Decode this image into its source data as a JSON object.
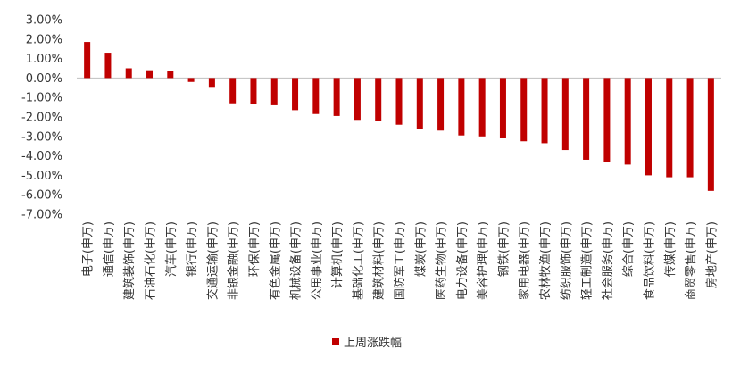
{
  "chart_data": {
    "type": "bar",
    "categories": [
      "电子(申万)",
      "通信(申万)",
      "建筑装饰(申万)",
      "石油石化(申万)",
      "汽车(申万)",
      "银行(申万)",
      "交通运输(申万)",
      "非银金融(申万)",
      "环保(申万)",
      "有色金属(申万)",
      "机械设备(申万)",
      "公用事业(申万)",
      "计算机(申万)",
      "基础化工(申万)",
      "建筑材料(申万)",
      "国防军工(申万)",
      "煤炭(申万)",
      "医药生物(申万)",
      "电力设备(申万)",
      "美容护理(申万)",
      "钢铁(申万)",
      "家用电器(申万)",
      "农林牧渔(申万)",
      "纺织服饰(申万)",
      "轻工制造(申万)",
      "社会服务(申万)",
      "综合(申万)",
      "食品饮料(申万)",
      "传媒(申万)",
      "商贸零售(申万)",
      "房地产(申万)"
    ],
    "series": [
      {
        "name": "上周涨跌幅",
        "color": "#c00000",
        "values": [
          1.85,
          1.3,
          0.5,
          0.4,
          0.35,
          -0.2,
          -0.5,
          -1.3,
          -1.35,
          -1.4,
          -1.65,
          -1.85,
          -1.95,
          -2.15,
          -2.2,
          -2.4,
          -2.6,
          -2.7,
          -2.95,
          -3.0,
          -3.1,
          -3.25,
          -3.35,
          -3.7,
          -4.2,
          -4.3,
          -4.45,
          -5.0,
          -5.1,
          -5.1,
          -5.8
        ]
      }
    ],
    "y_ticks": [
      "3.00%",
      "2.00%",
      "1.00%",
      "0.00%",
      "-1.00%",
      "-2.00%",
      "-3.00%",
      "-4.00%",
      "-5.00%",
      "-6.00%",
      "-7.00%"
    ],
    "ylim": [
      -7,
      3
    ],
    "grid": false,
    "legend_position": "bottom-center"
  }
}
